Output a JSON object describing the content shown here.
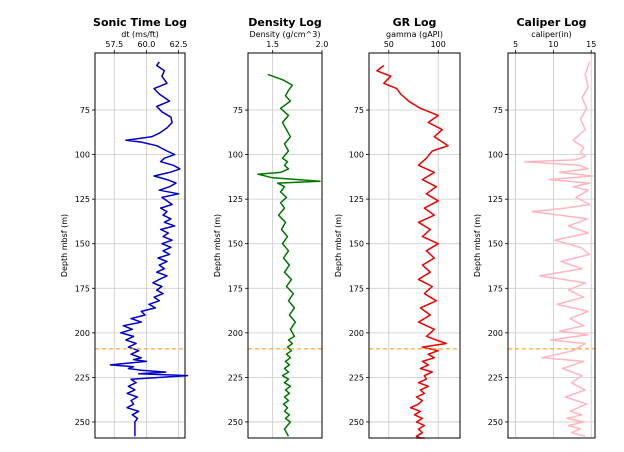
{
  "chart_data": [
    {
      "type": "line",
      "title": "Sonic Time Log",
      "xlabel": "dt (ms/ft)",
      "ylabel": "Depth mbsf (m)",
      "xlim": [
        56,
        63
      ],
      "ylim": [
        259,
        43
      ],
      "xticks": [
        "57.5",
        "60.0",
        "62.5"
      ],
      "yticks": [
        "75",
        "100",
        "125",
        "150",
        "175",
        "200",
        "225",
        "250"
      ],
      "color": "#0000cc",
      "series": [
        {
          "x": [
            61,
            60.8,
            61.4,
            61.2,
            61.6,
            60.6,
            61.0,
            61.8,
            60.8,
            61.2,
            61.9,
            62.0,
            61.6,
            61.0,
            60.4,
            58.4,
            59.6,
            60.8,
            61.6,
            62.2,
            61.4,
            61.1,
            62.1,
            62.6,
            61.8,
            60.6,
            61.6,
            62.3,
            61.8,
            61.0,
            62.5,
            61.2,
            61.6,
            62.0,
            61.1,
            61.6,
            61.3,
            61.9,
            61.4,
            62.2,
            61.1,
            61.7,
            61.3,
            62.0,
            61.2,
            61.9,
            61.3,
            61.8,
            60.9,
            61.6,
            61.0,
            61.4,
            60.8,
            61.6,
            61.0,
            60.5,
            61.2,
            60.8,
            61.3,
            60.6,
            61.0,
            60.2,
            60.7,
            59.6,
            59.9,
            58.8,
            59.6,
            58.2,
            58.9,
            58.0,
            59.0,
            58.4,
            59.2,
            58.6,
            59.4,
            58.8,
            59.6,
            59.0,
            60.0,
            58.6,
            57.2,
            59.0,
            58.6,
            59.6,
            61.5,
            59.4,
            63.2,
            58.8,
            59.2,
            58.6,
            59.1,
            58.5,
            59.3,
            58.8,
            59.0,
            58.5,
            59.4,
            58.9,
            59.3,
            59.1,
            59.1
          ],
          "y": [
            48,
            50,
            53,
            56,
            60,
            63,
            66,
            70,
            73,
            76,
            79,
            82,
            85,
            88,
            90,
            92,
            93,
            95,
            98,
            100,
            102,
            104,
            106,
            108,
            110,
            112,
            114,
            116,
            118,
            120,
            122,
            124,
            126,
            128,
            130,
            132,
            134,
            136,
            138,
            140,
            142,
            144,
            146,
            148,
            150,
            152,
            154,
            156,
            158,
            160,
            162,
            164,
            166,
            168,
            170,
            172,
            174,
            176,
            178,
            180,
            182,
            184,
            186,
            188,
            190,
            192,
            194,
            196,
            198,
            200,
            202,
            204,
            206,
            208,
            210,
            212,
            214,
            215,
            216,
            217,
            218,
            219,
            220,
            221,
            222,
            223,
            224,
            226,
            228,
            230,
            232,
            234,
            236,
            238,
            240,
            242,
            244,
            246,
            248,
            250,
            258
          ]
        }
      ]
    },
    {
      "type": "line",
      "title": "Density Log",
      "xlabel": "Density (g/cm^3)",
      "ylabel": "",
      "xlim": [
        1.25,
        2.0
      ],
      "ylim": [
        259,
        43
      ],
      "xticks": [
        "1.5",
        "2.0"
      ],
      "yticks": [
        "75",
        "100",
        "125",
        "150",
        "175",
        "200",
        "225",
        "250"
      ],
      "color": "#007700",
      "series": [
        {
          "x": [
            1.45,
            1.6,
            1.7,
            1.66,
            1.63,
            1.68,
            1.58,
            1.66,
            1.6,
            1.64,
            1.68,
            1.62,
            1.66,
            1.6,
            1.65,
            1.62,
            1.66,
            1.58,
            1.35,
            1.5,
            1.98,
            1.55,
            1.62,
            1.58,
            1.64,
            1.58,
            1.62,
            1.56,
            1.63,
            1.59,
            1.65,
            1.6,
            1.66,
            1.61,
            1.67,
            1.62,
            1.69,
            1.64,
            1.71,
            1.66,
            1.72,
            1.67,
            1.73,
            1.68,
            1.72,
            1.66,
            1.7,
            1.65,
            1.69,
            1.64,
            1.68,
            1.63,
            1.67,
            1.62,
            1.66,
            1.6,
            1.66,
            1.62,
            1.68,
            1.63,
            1.67,
            1.62,
            1.66,
            1.61,
            1.65,
            1.62,
            1.67,
            1.63,
            1.68,
            1.62,
            1.66
          ],
          "y": [
            55,
            58,
            61,
            64,
            67,
            70,
            74,
            78,
            82,
            86,
            90,
            94,
            98,
            102,
            104,
            106,
            108,
            110,
            111,
            113,
            115,
            116,
            118,
            121,
            124,
            127,
            130,
            134,
            138,
            142,
            146,
            150,
            154,
            158,
            162,
            166,
            170,
            174,
            178,
            182,
            186,
            190,
            194,
            198,
            202,
            204,
            206,
            208,
            210,
            212,
            214,
            216,
            218,
            220,
            222,
            224,
            226,
            228,
            230,
            232,
            234,
            236,
            238,
            240,
            242,
            244,
            246,
            248,
            250,
            254,
            258
          ]
        }
      ]
    },
    {
      "type": "line",
      "title": "GR Log",
      "xlabel": "gamma (gAPI)",
      "ylabel": "",
      "xlim": [
        30,
        122
      ],
      "ylim": [
        259,
        43
      ],
      "xticks": [
        "50",
        "100"
      ],
      "yticks": [
        "75",
        "100",
        "125",
        "150",
        "175",
        "200",
        "225",
        "250"
      ],
      "color": "#ee0000",
      "series": [
        {
          "x": [
            45,
            38,
            52,
            45,
            58,
            62,
            70,
            82,
            100,
            90,
            104,
            96,
            110,
            94,
            88,
            80,
            96,
            84,
            98,
            88,
            100,
            86,
            96,
            80,
            92,
            84,
            100,
            88,
            96,
            84,
            92,
            80,
            94,
            86,
            98,
            82,
            92,
            80,
            96,
            88,
            108,
            84,
            100,
            90,
            96,
            84,
            90,
            82,
            94,
            86,
            88,
            80,
            90,
            82,
            86,
            78,
            84,
            80,
            72,
            82,
            76,
            84,
            78,
            86,
            80,
            84,
            78,
            82,
            80,
            84,
            78,
            86,
            80,
            84,
            80
          ],
          "y": [
            50,
            53,
            56,
            60,
            63,
            66,
            70,
            74,
            78,
            82,
            86,
            90,
            95,
            98,
            102,
            106,
            110,
            114,
            118,
            122,
            126,
            130,
            134,
            138,
            142,
            146,
            150,
            154,
            158,
            162,
            166,
            170,
            174,
            178,
            182,
            186,
            190,
            194,
            198,
            202,
            206,
            208,
            210,
            212,
            214,
            216,
            218,
            220,
            222,
            224,
            226,
            228,
            230,
            232,
            234,
            236,
            238,
            240,
            242,
            244,
            246,
            248,
            250,
            252,
            254,
            256,
            258,
            259,
            259,
            259,
            259,
            259,
            259,
            259,
            259
          ]
        }
      ]
    },
    {
      "type": "line",
      "title": "Caliper Log",
      "xlabel": "caliper(in)",
      "ylabel": "",
      "xlim": [
        4,
        15.5
      ],
      "ylim": [
        259,
        43
      ],
      "xticks": [
        "5",
        "10",
        "15"
      ],
      "yticks": [
        "75",
        "100",
        "125",
        "150",
        "175",
        "200",
        "225",
        "250"
      ],
      "color": "#ffb6c1",
      "series": [
        {
          "x": [
            14.8,
            14.2,
            14.6,
            13.8,
            14.4,
            13.6,
            14.2,
            12.6,
            14.0,
            13.6,
            14.2,
            12.8,
            6.2,
            13.5,
            14.6,
            10.8,
            15.2,
            9.4,
            14.8,
            12.6,
            14.6,
            13.0,
            14.8,
            11.5,
            7.2,
            14.5,
            12.0,
            14.6,
            10.2,
            13.6,
            14.8,
            11.0,
            13.8,
            8.2,
            14.2,
            12.0,
            14.0,
            10.5,
            14.6,
            12.2,
            14.0,
            10.8,
            14.6,
            9.6,
            14.2,
            12.6,
            8.5,
            14.0,
            11.2,
            13.8,
            12.4,
            14.2,
            11.6,
            14.4,
            12.2,
            13.8,
            11.8,
            14.0,
            12.0,
            13.6,
            12.4,
            14.2
          ],
          "y": [
            48,
            55,
            62,
            68,
            74,
            80,
            86,
            92,
            96,
            99,
            101,
            103,
            104,
            106,
            108,
            110,
            112,
            114,
            116,
            118,
            120,
            124,
            128,
            130,
            132,
            136,
            140,
            144,
            148,
            152,
            156,
            160,
            164,
            168,
            172,
            176,
            180,
            184,
            188,
            192,
            196,
            199,
            201,
            204,
            206,
            210,
            214,
            216,
            220,
            224,
            228,
            232,
            236,
            240,
            244,
            246,
            248,
            250,
            252,
            254,
            256,
            258
          ]
        }
      ]
    }
  ],
  "reference_line": {
    "depth": 209,
    "color": "#ff8c00"
  }
}
